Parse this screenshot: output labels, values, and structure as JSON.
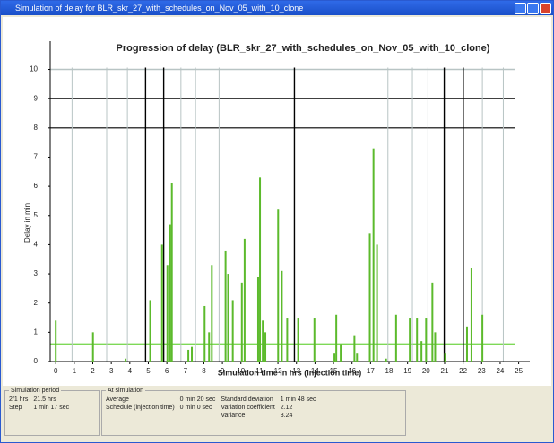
{
  "window": {
    "title": "Simulation of delay for BLR_skr_27_with_schedules_on_Nov_05_with_10_clone"
  },
  "chart_data": {
    "type": "bar",
    "title": "Progression of delay (BLR_skr_27_with_schedules_on_Nov_05_with_10_clone)",
    "x_label": "Simulation time in hrs (injection time)",
    "y_label": "Delay in min",
    "color": "#5cba2c",
    "x": [
      0,
      2.01,
      3.77,
      5.1,
      5.74,
      6.03,
      6.18,
      6.27,
      7.16,
      7.35,
      8.04,
      8.28,
      8.43,
      9.17,
      9.31,
      9.56,
      10.05,
      10.2,
      10.93,
      11.03,
      11.18,
      11.32,
      12.01,
      12.21,
      12.5,
      13.09,
      13.97,
      15.05,
      15.15,
      15.39,
      16.13,
      16.27,
      16.96,
      17.16,
      17.35,
      17.84,
      18.38,
      19.12,
      19.51,
      19.75,
      20,
      20.34,
      20.49,
      21.03,
      22.21,
      22.45,
      23.04
    ],
    "values": [
      1.4,
      1.0,
      0.1,
      2.1,
      4.0,
      3.3,
      4.7,
      6.1,
      0.4,
      0.5,
      1.9,
      1.0,
      3.3,
      3.8,
      3.0,
      2.1,
      2.7,
      4.2,
      2.9,
      6.3,
      1.4,
      1.0,
      5.2,
      3.1,
      1.5,
      1.5,
      1.5,
      0.3,
      1.6,
      0.6,
      0.9,
      0.3,
      4.4,
      7.3,
      4.0,
      0.1,
      1.6,
      1.5,
      1.5,
      0.7,
      1.5,
      2.7,
      1.0,
      0.3,
      1.2,
      3.2,
      1.6
    ],
    "xlim": [
      -0.3,
      25.6
    ],
    "ylim": [
      0,
      10.2
    ],
    "xticks": [
      0,
      1,
      2,
      3,
      4,
      5,
      6,
      7,
      8,
      9,
      10,
      11,
      12,
      13,
      14,
      15,
      16,
      17,
      18,
      19,
      20,
      21,
      22,
      23,
      24,
      25
    ],
    "yticks": [
      0,
      1,
      2,
      3,
      4,
      5,
      6,
      7,
      8,
      9,
      10
    ],
    "vertical_lines": [
      {
        "x": 0.88,
        "color": "#b8c4c4"
      },
      {
        "x": 2.75,
        "color": "#b8c4c4"
      },
      {
        "x": 3.87,
        "color": "#b8c4c4"
      },
      {
        "x": 4.85,
        "color": "#000000"
      },
      {
        "x": 5.83,
        "color": "#000000"
      },
      {
        "x": 6.76,
        "color": "#b8c4c4"
      },
      {
        "x": 7.55,
        "color": "#b8c4c4"
      },
      {
        "x": 8.82,
        "color": "#b8c4c4"
      },
      {
        "x": 12.89,
        "color": "#000000"
      },
      {
        "x": 17.94,
        "color": "#b8c4c4"
      },
      {
        "x": 19.26,
        "color": "#b8c4c4"
      },
      {
        "x": 20.1,
        "color": "#b8c4c4"
      },
      {
        "x": 20.98,
        "color": "#000000"
      },
      {
        "x": 22.01,
        "color": "#000000"
      },
      {
        "x": 23.04,
        "color": "#b8c4c4"
      },
      {
        "x": 24.17,
        "color": "#b8c4c4"
      }
    ],
    "horizontal_lines": [
      {
        "y": 10,
        "color": "#b8c4c4"
      },
      {
        "y": 9,
        "color": "#000000"
      },
      {
        "y": 8,
        "color": "#000000"
      },
      {
        "y": 0.6,
        "color": "#7ed957"
      }
    ]
  },
  "panels": [
    {
      "title": "Simulation period",
      "rows": [
        [
          "2/1 hrs",
          "21.5 hrs"
        ],
        [
          "Step",
          "1 min 17 sec"
        ]
      ]
    },
    {
      "title": "At simulation",
      "rows": [
        [
          "Average",
          "0 min 20 sec",
          "Standard deviation",
          "1 min 48 sec"
        ],
        [
          "Schedule (injection time)",
          "0 min 0 sec",
          "Variation coefficient",
          "2.12"
        ],
        [
          "",
          "",
          "Variance",
          "3.24"
        ]
      ]
    }
  ]
}
